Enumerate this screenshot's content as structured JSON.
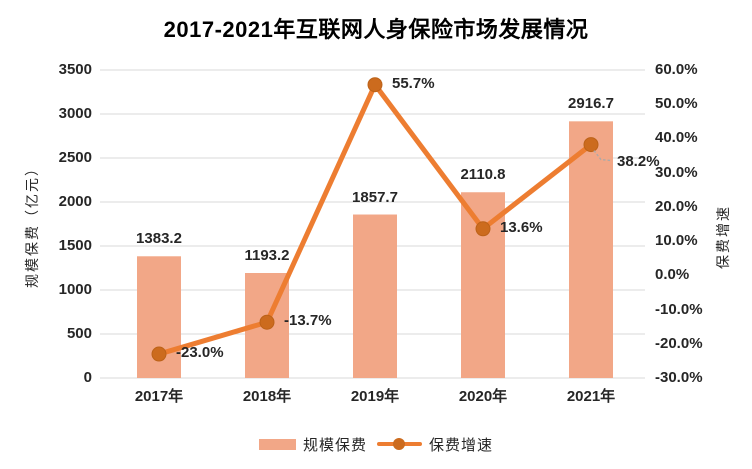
{
  "title": "2017-2021年互联网人身保险市场发展情况",
  "chart_data": {
    "type": "bar+line combo",
    "categories": [
      "2017年",
      "2018年",
      "2019年",
      "2020年",
      "2021年"
    ],
    "series": [
      {
        "name": "规模保费",
        "type": "bar",
        "axis": "left",
        "unit": "亿元",
        "values": [
          1383.2,
          1193.2,
          1857.7,
          2110.8,
          2916.7
        ],
        "labels": [
          "1383.2",
          "1193.2",
          "1857.7",
          "2110.8",
          "2916.7"
        ]
      },
      {
        "name": "保费增速",
        "type": "line",
        "axis": "right",
        "unit": "%",
        "values": [
          -23.0,
          -13.7,
          55.7,
          13.6,
          38.2
        ],
        "labels": [
          "-23.0%",
          "-13.7%",
          "55.7%",
          "13.6%",
          "38.2%"
        ]
      }
    ],
    "left_axis": {
      "title": "规模保费（亿元）",
      "min": 0,
      "max": 3500,
      "step": 500,
      "ticks": [
        "3500",
        "3000",
        "2500",
        "2000",
        "1500",
        "1000",
        "500",
        "0"
      ]
    },
    "right_axis": {
      "title": "保费增速",
      "min": -30,
      "max": 60,
      "step": 10,
      "ticks": [
        "60.0%",
        "50.0%",
        "40.0%",
        "30.0%",
        "20.0%",
        "10.0%",
        "0.0%",
        "-10.0%",
        "-20.0%",
        "-30.0%"
      ]
    },
    "grid": true,
    "legend_position": "bottom"
  },
  "legend": {
    "items": [
      {
        "label": "规模保费",
        "swatch": "bar"
      },
      {
        "label": "保费增速",
        "swatch": "line-marker"
      }
    ]
  },
  "colors": {
    "bar": "#F2A787",
    "line": "#ED7D31",
    "marker": "#CC6B1E",
    "marker_edge": "#BC6218",
    "grid": "#D9D9D9",
    "text": "#262626",
    "leader": "#A9A9A9",
    "background": "#FFFFFF"
  }
}
